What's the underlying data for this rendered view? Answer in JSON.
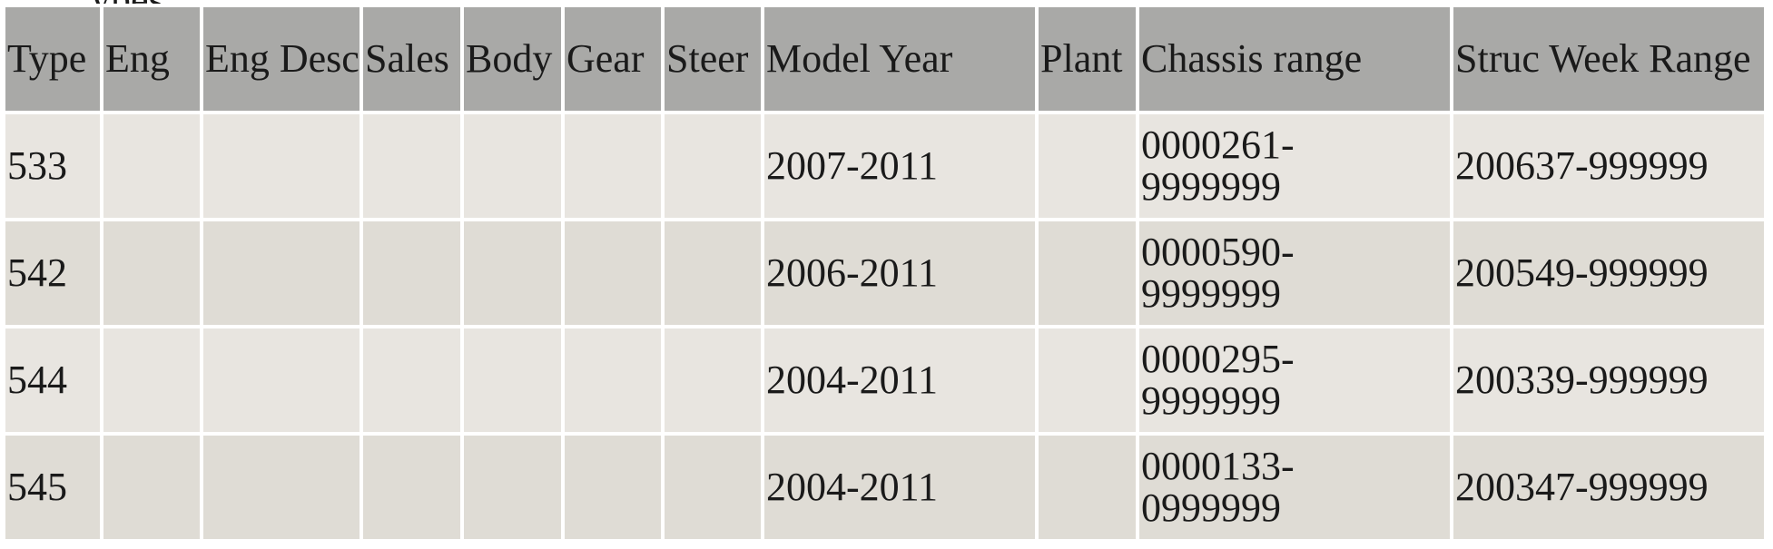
{
  "cut_off_text": "ypes",
  "table": {
    "headers": [
      "Type",
      "Eng",
      "Eng Desc",
      "Sales",
      "Body",
      "Gear",
      "Steer",
      "Model Year",
      "Plant",
      "Chassis range",
      "Struc Week Range"
    ],
    "rows": [
      {
        "type": "533",
        "eng": "",
        "eng_desc": "",
        "sales": "",
        "body": "",
        "gear": "",
        "steer": "",
        "model_year": "2007-2011",
        "plant": "",
        "chassis_range_start": "0000261-",
        "chassis_range_end": "9999999",
        "struc_week_range": "200637-999999"
      },
      {
        "type": "542",
        "eng": "",
        "eng_desc": "",
        "sales": "",
        "body": "",
        "gear": "",
        "steer": "",
        "model_year": "2006-2011",
        "plant": "",
        "chassis_range_start": "0000590-",
        "chassis_range_end": "9999999",
        "struc_week_range": "200549-999999"
      },
      {
        "type": "544",
        "eng": "",
        "eng_desc": "",
        "sales": "",
        "body": "",
        "gear": "",
        "steer": "",
        "model_year": "2004-2011",
        "plant": "",
        "chassis_range_start": "0000295-",
        "chassis_range_end": "9999999",
        "struc_week_range": "200339-999999"
      },
      {
        "type": "545",
        "eng": "",
        "eng_desc": "",
        "sales": "",
        "body": "",
        "gear": "",
        "steer": "",
        "model_year": "2004-2011",
        "plant": "",
        "chassis_range_start": "0000133-",
        "chassis_range_end": "0999999",
        "struc_week_range": "200347-999999"
      }
    ]
  }
}
